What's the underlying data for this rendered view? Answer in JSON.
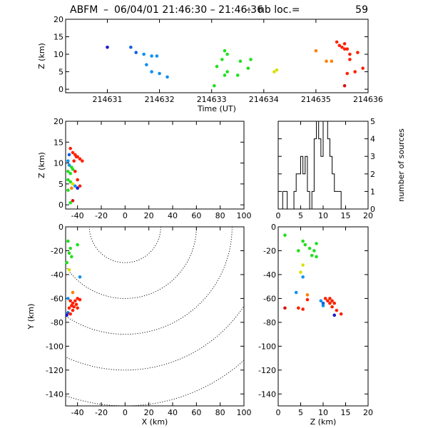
{
  "title": {
    "station": "ABFM",
    "datetime": "06/04/01 21:46:30 – 21:46:36",
    "count_label": "nb loc.=",
    "count": "59"
  },
  "chart_data": [
    {
      "id": "time_height",
      "type": "scatter",
      "xlabel": "Time (UT)",
      "ylabel": "Z (km)",
      "xlim": [
        214630.2,
        214636.0
      ],
      "ylim": [
        -1,
        20
      ],
      "xticks": [
        "214631",
        "214632",
        "214633",
        "214634",
        "214635",
        "214636"
      ],
      "yticks": [
        "0",
        "5",
        "10",
        "15",
        "20"
      ],
      "points": [
        {
          "x": 214631.0,
          "y": 12.0,
          "color": "#1a1acc"
        },
        {
          "x": 214631.45,
          "y": 12.0,
          "color": "#1060e0"
        },
        {
          "x": 214631.55,
          "y": 10.5,
          "color": "#1060e0"
        },
        {
          "x": 214631.7,
          "y": 10.0,
          "color": "#1090f0"
        },
        {
          "x": 214631.85,
          "y": 9.5,
          "color": "#1090f0"
        },
        {
          "x": 214631.95,
          "y": 9.5,
          "color": "#1090f0"
        },
        {
          "x": 214631.75,
          "y": 7.0,
          "color": "#1090f0"
        },
        {
          "x": 214631.85,
          "y": 5.0,
          "color": "#1090f0"
        },
        {
          "x": 214632.0,
          "y": 4.5,
          "color": "#1090f0"
        },
        {
          "x": 214632.15,
          "y": 3.5,
          "color": "#1090f0"
        },
        {
          "x": 214633.25,
          "y": 11.0,
          "color": "#20e020"
        },
        {
          "x": 214633.3,
          "y": 10.0,
          "color": "#20e020"
        },
        {
          "x": 214633.2,
          "y": 8.5,
          "color": "#20e020"
        },
        {
          "x": 214633.1,
          "y": 6.5,
          "color": "#20e020"
        },
        {
          "x": 214633.3,
          "y": 5.0,
          "color": "#20e020"
        },
        {
          "x": 214633.25,
          "y": 4.0,
          "color": "#20e020"
        },
        {
          "x": 214633.05,
          "y": 1.0,
          "color": "#20e020"
        },
        {
          "x": 214633.55,
          "y": 8.0,
          "color": "#20e020"
        },
        {
          "x": 214633.75,
          "y": 8.5,
          "color": "#20e020"
        },
        {
          "x": 214633.7,
          "y": 6.0,
          "color": "#20e020"
        },
        {
          "x": 214633.5,
          "y": 4.0,
          "color": "#20e020"
        },
        {
          "x": 214634.25,
          "y": 5.5,
          "color": "#d8e000"
        },
        {
          "x": 214634.2,
          "y": 5.0,
          "color": "#d8e000"
        },
        {
          "x": 214635.0,
          "y": 11.0,
          "color": "#ff8000"
        },
        {
          "x": 214635.2,
          "y": 8.0,
          "color": "#ff8000"
        },
        {
          "x": 214635.3,
          "y": 8.0,
          "color": "#ff8000"
        },
        {
          "x": 214635.4,
          "y": 13.5,
          "color": "#ff2000"
        },
        {
          "x": 214635.45,
          "y": 12.5,
          "color": "#ff2000"
        },
        {
          "x": 214635.5,
          "y": 12.0,
          "color": "#ff2000"
        },
        {
          "x": 214635.55,
          "y": 11.5,
          "color": "#ff2000"
        },
        {
          "x": 214635.6,
          "y": 11.5,
          "color": "#ff2000"
        },
        {
          "x": 214635.55,
          "y": 13.0,
          "color": "#ff2000"
        },
        {
          "x": 214635.65,
          "y": 10.0,
          "color": "#ff2000"
        },
        {
          "x": 214635.8,
          "y": 10.5,
          "color": "#ff2000"
        },
        {
          "x": 214635.65,
          "y": 8.5,
          "color": "#ff2000"
        },
        {
          "x": 214635.6,
          "y": 4.5,
          "color": "#ff2000"
        },
        {
          "x": 214635.75,
          "y": 5.0,
          "color": "#ff2000"
        },
        {
          "x": 214635.55,
          "y": 1.0,
          "color": "#e01010"
        },
        {
          "x": 214635.9,
          "y": 6.0,
          "color": "#ff2000"
        }
      ]
    },
    {
      "id": "x_height",
      "type": "scatter",
      "xlabel": "",
      "ylabel": "Z (km)",
      "xlim": [
        -50,
        100
      ],
      "ylim": [
        -1,
        20
      ],
      "xticks": [
        "-40",
        "-20",
        "0",
        "20",
        "40",
        "60",
        "80",
        "100"
      ],
      "yticks": [
        "0",
        "5",
        "10",
        "15",
        "20"
      ],
      "points": [
        {
          "x": -46,
          "y": 13.5,
          "color": "#ff2000"
        },
        {
          "x": -44,
          "y": 12.5,
          "color": "#ff2000"
        },
        {
          "x": -42,
          "y": 12.0,
          "color": "#ff2000"
        },
        {
          "x": -40,
          "y": 11.5,
          "color": "#ff2000"
        },
        {
          "x": -38,
          "y": 11.0,
          "color": "#ff2000"
        },
        {
          "x": -36,
          "y": 10.5,
          "color": "#ff2000"
        },
        {
          "x": -43,
          "y": 10.5,
          "color": "#ff2000"
        },
        {
          "x": -41,
          "y": 11.5,
          "color": "#ff2000"
        },
        {
          "x": -47,
          "y": 12.0,
          "color": "#1060e0"
        },
        {
          "x": -48,
          "y": 10.5,
          "color": "#1090f0"
        },
        {
          "x": -47,
          "y": 9.5,
          "color": "#1090f0"
        },
        {
          "x": -45,
          "y": 9.0,
          "color": "#20e020"
        },
        {
          "x": -48,
          "y": 8.0,
          "color": "#20e020"
        },
        {
          "x": -46,
          "y": 7.5,
          "color": "#20e020"
        },
        {
          "x": -44,
          "y": 8.5,
          "color": "#20e020"
        },
        {
          "x": -42,
          "y": 8.0,
          "color": "#ff2000"
        },
        {
          "x": -40,
          "y": 6.0,
          "color": "#ff2000"
        },
        {
          "x": -48,
          "y": 6.0,
          "color": "#20e020"
        },
        {
          "x": -46,
          "y": 5.5,
          "color": "#20e020"
        },
        {
          "x": -44,
          "y": 5.0,
          "color": "#d8e000"
        },
        {
          "x": -42,
          "y": 4.5,
          "color": "#1090f0"
        },
        {
          "x": -40,
          "y": 4.0,
          "color": "#1a1acc"
        },
        {
          "x": -38,
          "y": 4.5,
          "color": "#ff2000"
        },
        {
          "x": -45,
          "y": 4.0,
          "color": "#ff8000"
        },
        {
          "x": -48,
          "y": 3.5,
          "color": "#20e020"
        },
        {
          "x": -44,
          "y": 1.0,
          "color": "#e01010"
        },
        {
          "x": -46,
          "y": 0.5,
          "color": "#20e020"
        }
      ]
    },
    {
      "id": "histogram",
      "type": "bar",
      "xlabel": "",
      "ylabel": "number of sources",
      "xlim": [
        0,
        20
      ],
      "ylim": [
        0,
        5
      ],
      "xticks": [
        "0",
        "5",
        "10",
        "15",
        "20"
      ],
      "yticks": [
        "0",
        "1",
        "2",
        "3",
        "4",
        "5"
      ],
      "bin_width": 0.5,
      "bin_starts": [
        1.0,
        1.5,
        2.0,
        2.5,
        3.0,
        3.5,
        4.0,
        4.5,
        5.0,
        5.5,
        6.0,
        6.5,
        7.0,
        7.5,
        8.0,
        8.5,
        9.0,
        9.5,
        10.0,
        10.5,
        11.0,
        11.5,
        12.0,
        12.5,
        13.0,
        13.5
      ],
      "counts": [
        1,
        1,
        0,
        0,
        0,
        1,
        2,
        2,
        3,
        2,
        3,
        1,
        0,
        1,
        4,
        5,
        4,
        3,
        5,
        5,
        4,
        3,
        2,
        1,
        1,
        1
      ]
    },
    {
      "id": "plan_view",
      "type": "scatter",
      "xlabel": "X (km)",
      "ylabel": "Y (km)",
      "xlim": [
        -50,
        100
      ],
      "ylim": [
        -150,
        0
      ],
      "xticks": [
        "-40",
        "-20",
        "0",
        "20",
        "40",
        "60",
        "80",
        "100"
      ],
      "yticks": [
        "-140",
        "-120",
        "-100",
        "-80",
        "-60",
        "-40",
        "-20",
        "0"
      ],
      "range_rings_km": [
        30,
        60,
        90,
        120,
        150
      ],
      "points": [
        {
          "x": -48,
          "y": -12,
          "color": "#20e020"
        },
        {
          "x": -46,
          "y": -18,
          "color": "#20e020"
        },
        {
          "x": -47,
          "y": -22,
          "color": "#20e020"
        },
        {
          "x": -45,
          "y": -25,
          "color": "#20e020"
        },
        {
          "x": -40,
          "y": -15,
          "color": "#20e020"
        },
        {
          "x": -49,
          "y": -30,
          "color": "#20e020"
        },
        {
          "x": -47,
          "y": -36,
          "color": "#d8e000"
        },
        {
          "x": -38,
          "y": -42,
          "color": "#1090f0"
        },
        {
          "x": -44,
          "y": -55,
          "color": "#ff8000"
        },
        {
          "x": -48,
          "y": -60,
          "color": "#1090f0"
        },
        {
          "x": -46,
          "y": -62,
          "color": "#ff2000"
        },
        {
          "x": -44,
          "y": -64,
          "color": "#ff2000"
        },
        {
          "x": -42,
          "y": -62,
          "color": "#ff2000"
        },
        {
          "x": -40,
          "y": -60,
          "color": "#ff2000"
        },
        {
          "x": -38,
          "y": -61,
          "color": "#ff2000"
        },
        {
          "x": -45,
          "y": -66,
          "color": "#ff2000"
        },
        {
          "x": -43,
          "y": -67,
          "color": "#ff2000"
        },
        {
          "x": -41,
          "y": -65,
          "color": "#ff2000"
        },
        {
          "x": -47,
          "y": -68,
          "color": "#ff2000"
        },
        {
          "x": -44,
          "y": -70,
          "color": "#ff2000"
        },
        {
          "x": -40,
          "y": -68,
          "color": "#ff2000"
        },
        {
          "x": -48,
          "y": -72,
          "color": "#1060e0"
        },
        {
          "x": -49,
          "y": -74,
          "color": "#1a1acc"
        },
        {
          "x": -46,
          "y": -73,
          "color": "#ff2000"
        }
      ]
    },
    {
      "id": "z_y",
      "type": "scatter",
      "xlabel": "Z (km)",
      "ylabel": "",
      "xlim": [
        0,
        20
      ],
      "ylim": [
        -150,
        0
      ],
      "xticks": [
        "0",
        "5",
        "10",
        "15",
        "20"
      ],
      "yticks": [
        "-140",
        "-120",
        "-100",
        "-80",
        "-60",
        "-40",
        "-20",
        "0"
      ],
      "points": [
        {
          "x": 1.5,
          "y": -7,
          "color": "#20e020"
        },
        {
          "x": 5.5,
          "y": -12,
          "color": "#20e020"
        },
        {
          "x": 6.0,
          "y": -15,
          "color": "#20e020"
        },
        {
          "x": 7.0,
          "y": -18,
          "color": "#20e020"
        },
        {
          "x": 8.0,
          "y": -20,
          "color": "#20e020"
        },
        {
          "x": 8.5,
          "y": -14,
          "color": "#20e020"
        },
        {
          "x": 7.5,
          "y": -24,
          "color": "#20e020"
        },
        {
          "x": 8.5,
          "y": -25,
          "color": "#20e020"
        },
        {
          "x": 4.5,
          "y": -20,
          "color": "#20e020"
        },
        {
          "x": 5.5,
          "y": -32,
          "color": "#d8e000"
        },
        {
          "x": 5.0,
          "y": -38,
          "color": "#d8e000"
        },
        {
          "x": 5.5,
          "y": -42,
          "color": "#1090f0"
        },
        {
          "x": 4.0,
          "y": -55,
          "color": "#1090f0"
        },
        {
          "x": 6.5,
          "y": -57,
          "color": "#ff8000"
        },
        {
          "x": 10.5,
          "y": -60,
          "color": "#ff2000"
        },
        {
          "x": 11.0,
          "y": -62,
          "color": "#ff2000"
        },
        {
          "x": 11.5,
          "y": -64,
          "color": "#ff2000"
        },
        {
          "x": 12.0,
          "y": -62,
          "color": "#ff2000"
        },
        {
          "x": 12.5,
          "y": -64,
          "color": "#ff2000"
        },
        {
          "x": 11.5,
          "y": -60,
          "color": "#ff2000"
        },
        {
          "x": 12.0,
          "y": -67,
          "color": "#ff2000"
        },
        {
          "x": 10.0,
          "y": -66,
          "color": "#1090f0"
        },
        {
          "x": 9.5,
          "y": -62,
          "color": "#1090f0"
        },
        {
          "x": 10.0,
          "y": -64,
          "color": "#1060e0"
        },
        {
          "x": 13.0,
          "y": -70,
          "color": "#ff2000"
        },
        {
          "x": 14.0,
          "y": -73,
          "color": "#ff2000"
        },
        {
          "x": 12.5,
          "y": -74,
          "color": "#1a1acc"
        },
        {
          "x": 1.5,
          "y": -68,
          "color": "#e01010"
        },
        {
          "x": 4.5,
          "y": -68,
          "color": "#ff2000"
        },
        {
          "x": 5.5,
          "y": -69,
          "color": "#ff2000"
        },
        {
          "x": 6.5,
          "y": -61,
          "color": "#ff2000"
        }
      ]
    }
  ]
}
